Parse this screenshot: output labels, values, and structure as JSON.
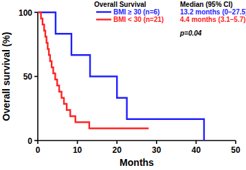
{
  "chart_data": {
    "type": "line",
    "line_style": "step",
    "x_label": "Months",
    "y_label": "Overall survival (%)",
    "legend_header": [
      "Overall Survival",
      "Median (95% CI)"
    ],
    "annotation": "p=0.04",
    "legend": "upper right",
    "xlim": [
      0,
      50
    ],
    "xticks": [
      0,
      10,
      20,
      30,
      40,
      50
    ],
    "ylim": [
      0,
      100
    ],
    "yticks": [
      0,
      50,
      100
    ],
    "series": [
      {
        "name": "BMI ≥ 30 (n=6)",
        "median_label": "13.2 months (0–27.5)",
        "color": "#1f1fff",
        "x": [
          0,
          4.5,
          8.5,
          13.2,
          20.0,
          22.5,
          42.0
        ],
        "values": [
          100,
          83.3,
          66.7,
          50.0,
          33.3,
          16.7,
          0
        ]
      },
      {
        "name": "BMI < 30 (n=21)",
        "median_label": "4.4 months (3.1–5.7)",
        "color": "#ff2222",
        "x": [
          0,
          0.8,
          1.2,
          1.6,
          1.9,
          2.2,
          2.5,
          2.8,
          3.1,
          3.5,
          3.9,
          4.4,
          4.9,
          5.4,
          6.0,
          6.6,
          7.3,
          8.2,
          9.5,
          13.0,
          28.0
        ],
        "values": [
          100,
          95.2,
          90.5,
          85.7,
          81.0,
          76.2,
          71.4,
          66.7,
          61.9,
          57.1,
          52.4,
          47.6,
          42.9,
          38.1,
          33.3,
          28.6,
          23.8,
          19.0,
          14.3,
          9.5,
          9.5
        ]
      }
    ]
  }
}
